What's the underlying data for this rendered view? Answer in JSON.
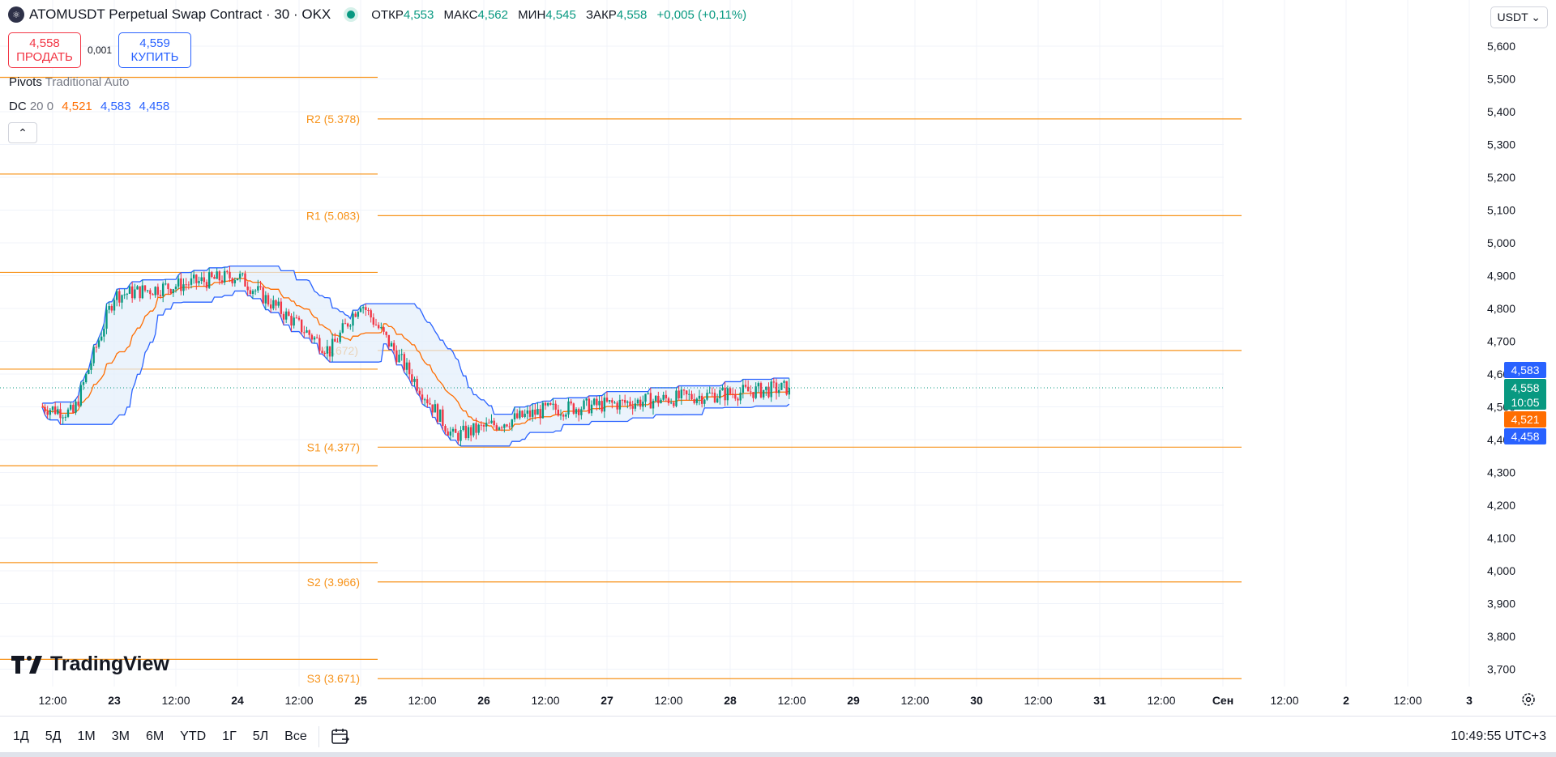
{
  "header": {
    "symbol_title": "ATOMUSDT Perpetual Swap Contract · 30 · OKX",
    "ohlc": [
      {
        "label": "ОТКР",
        "value": "4,553"
      },
      {
        "label": "МАКС",
        "value": "4,562"
      },
      {
        "label": "МИН",
        "value": "4,545"
      },
      {
        "label": "ЗАКР",
        "value": "4,558"
      }
    ],
    "change": "+0,005 (+0,11%)"
  },
  "trade": {
    "sell_price": "4,558",
    "sell_label": "ПРОДАТЬ",
    "spread": "0,001",
    "buy_price": "4,559",
    "buy_label": "КУПИТЬ"
  },
  "legend": {
    "pivots_name": "Pivots",
    "pivots_params": "Traditional Auto",
    "dc_name": "DC",
    "dc_params": "20 0",
    "dc_values": [
      "4,521",
      "4,583",
      "4,458"
    ]
  },
  "currency": "USDT",
  "logo_text": "TradingView",
  "toolbar": {
    "timeframes": [
      "1Д",
      "5Д",
      "1М",
      "3М",
      "6М",
      "YTD",
      "1Г",
      "5Л",
      "Все"
    ],
    "clock": "10:49:55 UTC+3"
  },
  "colors": {
    "up": "#089981",
    "down": "#f23645",
    "pivot": "#f7931a",
    "channel": "#2962ff",
    "basis": "#ff6d00",
    "channel_fill": "#e3eefb"
  },
  "icons": {
    "symbol": "atom-coin-icon",
    "calendar": "calendar-range-icon",
    "settings": "gear-icon",
    "collapse": "chevron-up-icon"
  },
  "chart_data": {
    "type": "candlestick",
    "y_axis": {
      "range": [
        3.65,
        5.66
      ],
      "ticks": [
        "5,600",
        "5,500",
        "5,400",
        "5,300",
        "5,200",
        "5,100",
        "5,000",
        "4,900",
        "4,800",
        "4,700",
        "4,600",
        "4,500",
        "4,400",
        "4,300",
        "4,200",
        "4,100",
        "4,000",
        "3,900",
        "3,800",
        "3,700"
      ]
    },
    "x_axis": {
      "ticks": [
        "12:00",
        "23",
        "12:00",
        "24",
        "12:00",
        "25",
        "12:00",
        "26",
        "12:00",
        "27",
        "12:00",
        "28",
        "12:00",
        "29",
        "12:00",
        "30",
        "12:00",
        "31",
        "12:00",
        "Сен",
        "12:00",
        "2",
        "12:00",
        "3"
      ],
      "bold_ticks": [
        "23",
        "24",
        "25",
        "26",
        "27",
        "28",
        "29",
        "30",
        "31",
        "Сен",
        "2",
        "3"
      ]
    },
    "current_price": 4.558,
    "countdown": "10:05",
    "price_labels": [
      {
        "label": "4,583",
        "value": 4.583,
        "color": "#2962ff"
      },
      {
        "label": "4,558",
        "value": 4.558,
        "color": "#089981"
      },
      {
        "label": "4,521",
        "value": 4.521,
        "color": "#ff6d00"
      },
      {
        "label": "4,458",
        "value": 4.458,
        "color": "#2962ff"
      }
    ],
    "pivots_current": [
      {
        "name": "R2",
        "label": "R2 (5.378)",
        "value": 5.378
      },
      {
        "name": "R1",
        "label": "R1 (5.083)",
        "value": 5.083
      },
      {
        "name": "P",
        "label": "(4.672)",
        "value": 4.672
      },
      {
        "name": "S1",
        "label": "S1 (4.377)",
        "value": 4.377
      },
      {
        "name": "S2",
        "label": "S2 (3.966)",
        "value": 3.966
      },
      {
        "name": "S3",
        "label": "S3 (3.671)",
        "value": 3.671
      }
    ],
    "pivots_previous": [
      5.505,
      5.21,
      4.91,
      4.615,
      4.32,
      4.025,
      3.73
    ],
    "series_shape": {
      "segments": [
        {
          "from": "22 10:00",
          "to": "22 16:00",
          "price_from": 4.5,
          "price_to": 4.48
        },
        {
          "from": "22 16:00",
          "to": "23 00:00",
          "price_from": 4.48,
          "price_to": 4.84
        },
        {
          "from": "23 00:00",
          "to": "24 00:00",
          "price_from": 4.84,
          "price_to": 4.9
        },
        {
          "from": "24 00:00",
          "to": "24 18:00",
          "price_from": 4.9,
          "price_to": 4.67
        },
        {
          "from": "24 18:00",
          "to": "25 00:00",
          "price_from": 4.67,
          "price_to": 4.82
        },
        {
          "from": "25 00:00",
          "to": "25 18:00",
          "price_from": 4.82,
          "price_to": 4.41
        },
        {
          "from": "25 18:00",
          "to": "26 12:00",
          "price_from": 4.41,
          "price_to": 4.49
        },
        {
          "from": "26 12:00",
          "to": "28 11:30",
          "price_from": 4.49,
          "price_to": 4.558
        }
      ]
    }
  }
}
